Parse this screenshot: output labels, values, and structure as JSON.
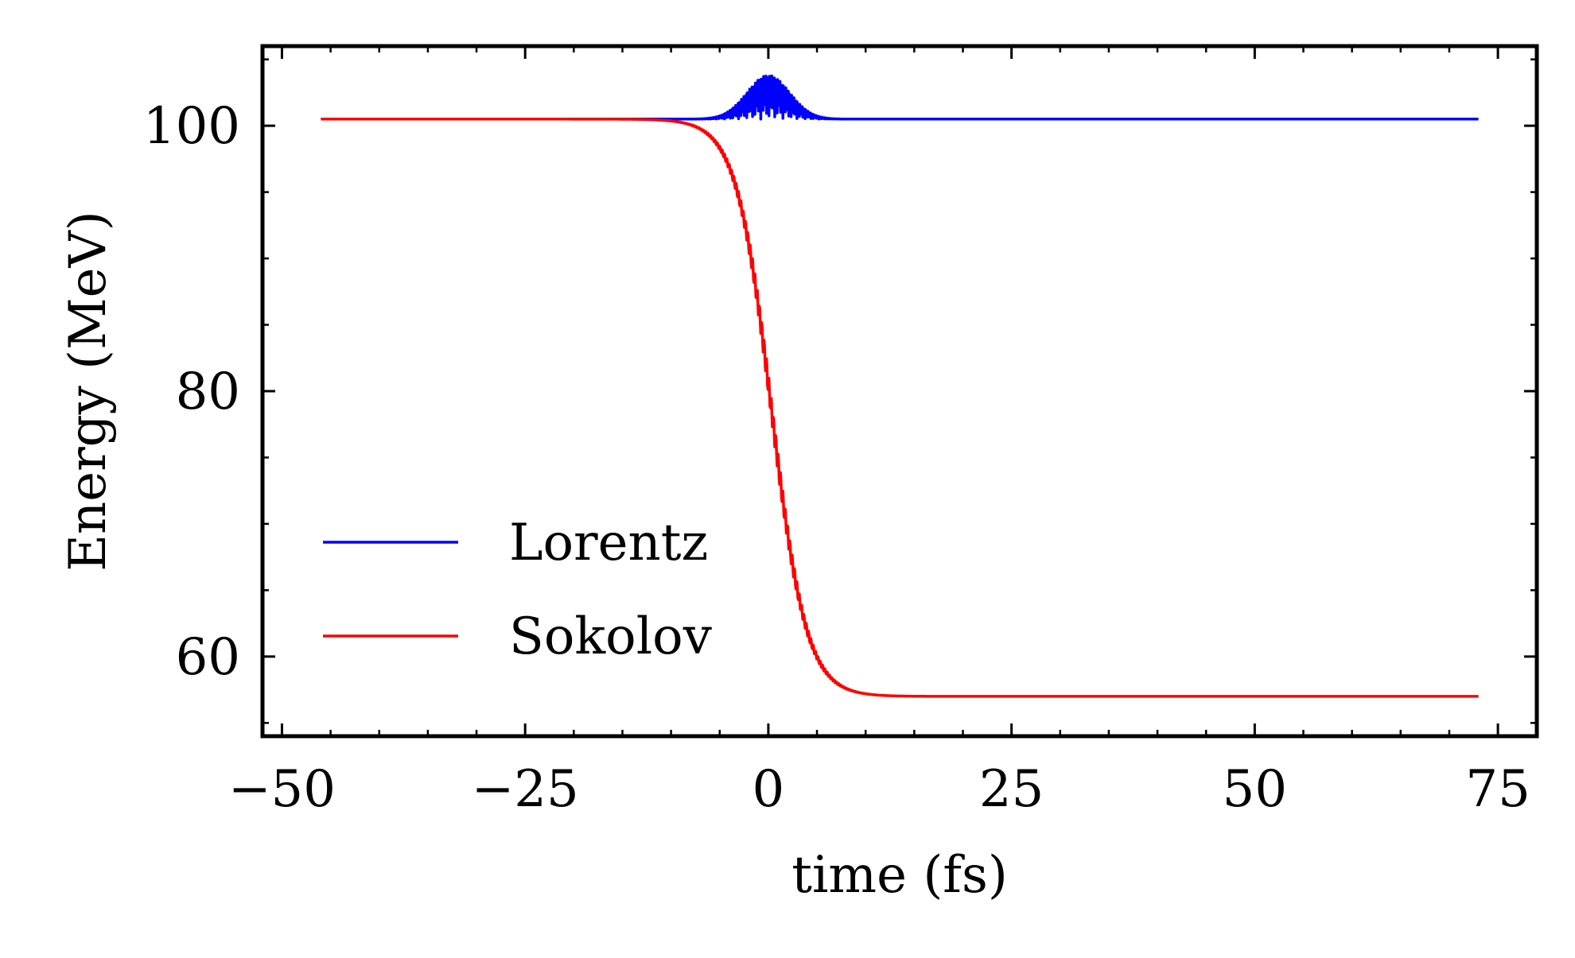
{
  "chart_data": {
    "type": "line",
    "xlabel": "time (fs)",
    "ylabel": "Energy (MeV)",
    "xlim": [
      -52,
      79
    ],
    "ylim": [
      54,
      106
    ],
    "xticks": [
      -50,
      -25,
      0,
      25,
      50,
      75
    ],
    "xtick_labels": [
      "−50",
      "−25",
      "0",
      "25",
      "50",
      "75"
    ],
    "yticks": [
      60,
      80,
      100
    ],
    "ytick_labels": [
      "60",
      "80",
      "100"
    ],
    "x_minor_step": 5,
    "y_minor_step": 5,
    "grid": false,
    "legend_position": "lower-left",
    "series": [
      {
        "name": "Lorentz",
        "color": "#0000ff",
        "baseline": 100.5,
        "x_range": [
          -46,
          73
        ],
        "peak": 103.8,
        "peak_center": 0,
        "peak_width": 2.2,
        "oscillating": true
      },
      {
        "name": "Sokolov",
        "color": "#ff0000",
        "start": 100.5,
        "end": 57.0,
        "x_range": [
          -46,
          73
        ],
        "transition_center": 0.3,
        "transition_width": 1.8,
        "oscillating": true
      }
    ]
  }
}
